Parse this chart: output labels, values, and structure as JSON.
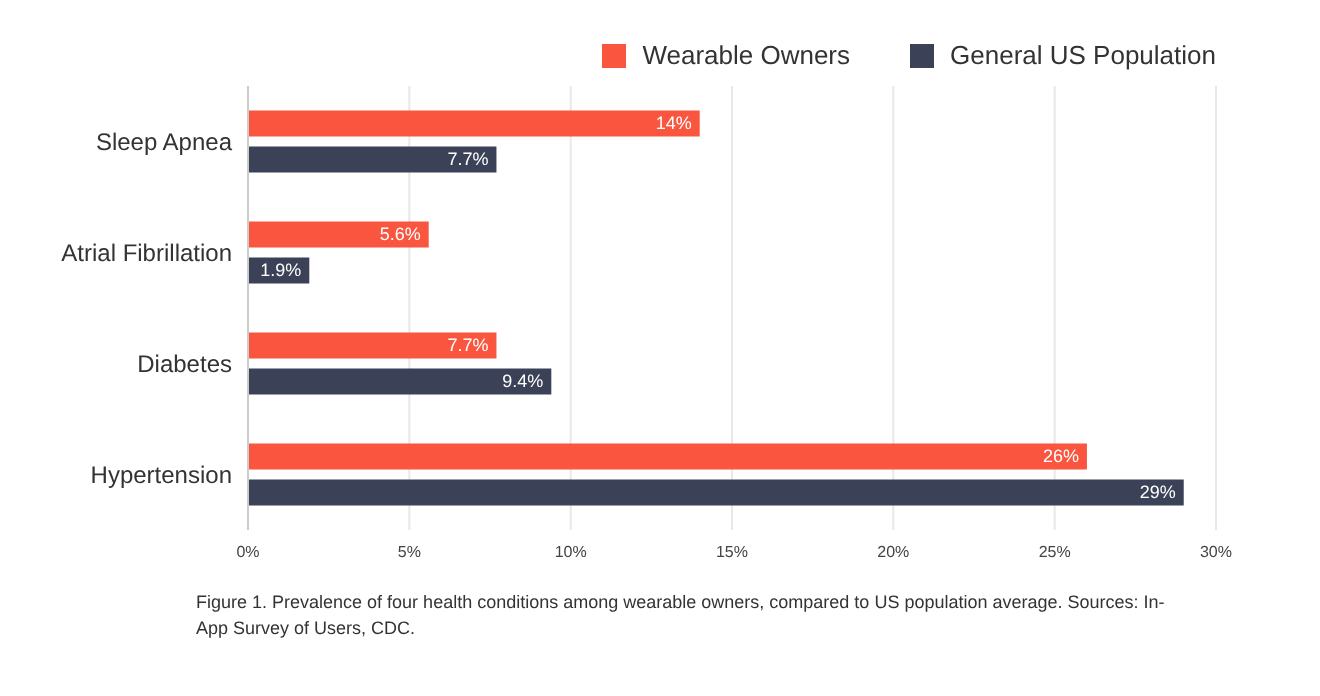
{
  "chart_data": {
    "type": "bar",
    "orientation": "horizontal",
    "categories": [
      "Sleep Apnea",
      "Atrial Fibrillation",
      "Diabetes",
      "Hypertension"
    ],
    "series": [
      {
        "name": "Wearable Owners",
        "color": "#f9553f",
        "values": [
          14,
          5.6,
          7.7,
          26
        ],
        "value_labels": [
          "14%",
          "5.6%",
          "7.7%",
          "26%"
        ]
      },
      {
        "name": "General US Population",
        "color": "#3b4257",
        "values": [
          7.7,
          1.9,
          9.4,
          29
        ],
        "value_labels": [
          "7.7%",
          "1.9%",
          "9.4%",
          "29%"
        ]
      }
    ],
    "xlim": [
      0,
      30
    ],
    "xticks": [
      {
        "value": 0,
        "label": "0%"
      },
      {
        "value": 5,
        "label": "5%"
      },
      {
        "value": 10,
        "label": "10%"
      },
      {
        "value": 15,
        "label": "15%"
      },
      {
        "value": 20,
        "label": "20%"
      },
      {
        "value": 25,
        "label": "25%"
      },
      {
        "value": 30,
        "label": "30%"
      }
    ],
    "grid": "x",
    "legend": "top right",
    "annotations": [
      "Figure 1. Prevalence of four health conditions among wearable owners, compared to US population average. Sources: In-App Survey of Users, CDC."
    ]
  }
}
